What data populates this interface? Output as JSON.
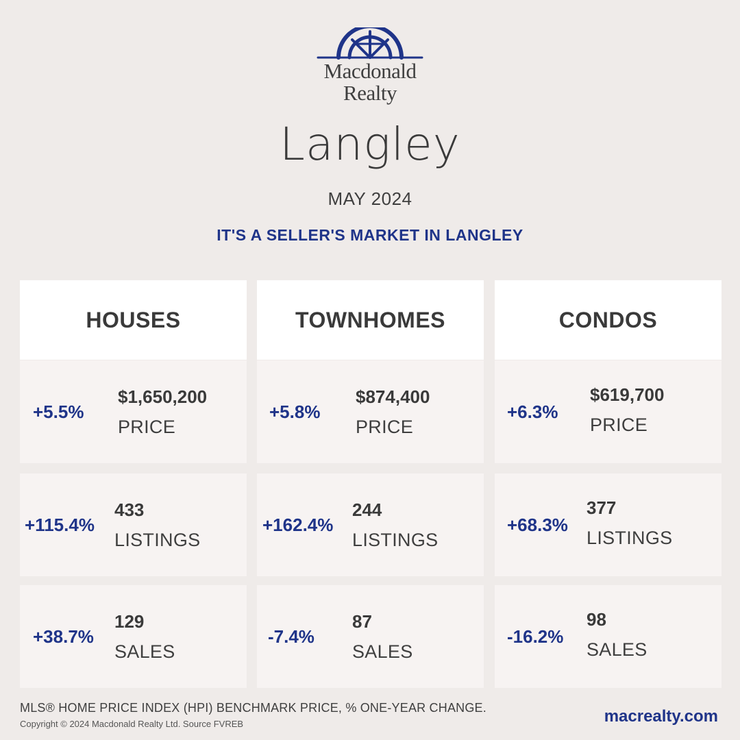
{
  "brand": {
    "logo_icon": "macdonald-realty-arch-logo",
    "name_line1": "Macdonald",
    "name_line2": "Realty",
    "color": "#1f3489"
  },
  "title": {
    "city": "Langley",
    "month": "MAY 2024",
    "headline": "IT'S A SELLER'S MARKET IN LANGLEY"
  },
  "columns": [
    {
      "name": "HOUSES",
      "rows": [
        {
          "change": "+5.5%",
          "value": "$1,650,200",
          "label": "PRICE"
        },
        {
          "change": "+115.4%",
          "value": "433",
          "label": "LISTINGS"
        },
        {
          "change": "+38.7%",
          "value": "129",
          "label": "SALES"
        }
      ]
    },
    {
      "name": "TOWNHOMES",
      "rows": [
        {
          "change": "+5.8%",
          "value": "$874,400",
          "label": "PRICE"
        },
        {
          "change": "+162.4%",
          "value": "244",
          "label": "LISTINGS"
        },
        {
          "change": "-7.4%",
          "value": "87",
          "label": "SALES"
        }
      ]
    },
    {
      "name": "CONDOS",
      "rows": [
        {
          "change": "+6.3%",
          "value": "$619,700",
          "label": "PRICE"
        },
        {
          "change": "+68.3%",
          "value": "377",
          "label": "LISTINGS"
        },
        {
          "change": "-16.2%",
          "value": "98",
          "label": "SALES"
        }
      ]
    }
  ],
  "footer": {
    "note": "MLS® HOME PRICE INDEX (HPI) BENCHMARK PRICE, % ONE-YEAR CHANGE.",
    "copyright": "Copyright © 2024 Macdonald Realty Ltd. Source FVREB",
    "website": "macrealty.com"
  }
}
